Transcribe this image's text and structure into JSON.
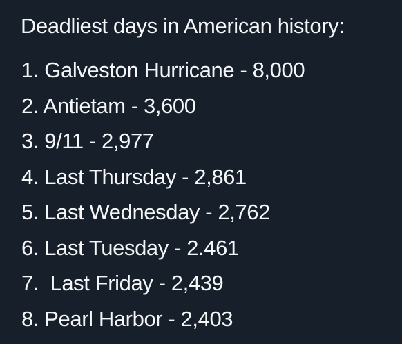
{
  "title": "Deadliest days in American history:",
  "items": [
    "1. Galveston Hurricane - 8,000",
    "2. Antietam - 3,600",
    "3. 9/11 - 2,977",
    "4. Last Thursday - 2,861",
    "5. Last Wednesday - 2,762",
    "6. Last Tuesday - 2.461",
    "7.  Last Friday - 2,439",
    "8. Pearl Harbor - 2,403"
  ]
}
